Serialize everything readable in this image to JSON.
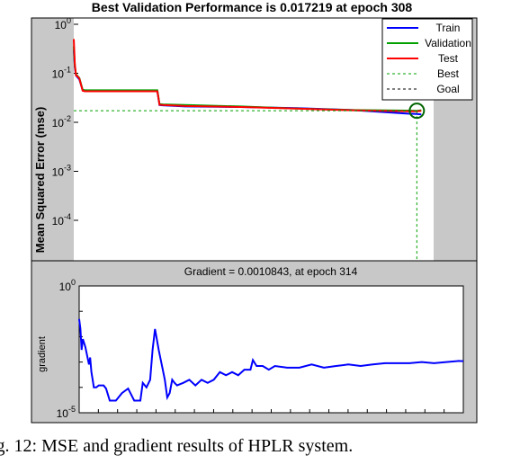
{
  "chart_data": [
    {
      "type": "line",
      "title": "Best Validation Performance is 0.017219 at epoch 308",
      "ylabel": "Mean Squared Error  (mse)",
      "xlabel": "",
      "yscale": "log",
      "ylim": [
        1e-05,
        1
      ],
      "xlim": [
        0,
        315
      ],
      "ytick_labels": [
        "10^0",
        "10^-1",
        "10^-2",
        "10^-3",
        "10^-4"
      ],
      "grid": false,
      "legend": "top-right",
      "background": "#c8c8c8",
      "series": [
        {
          "name": "Train",
          "color": "#0000ff",
          "style": "solid",
          "x": [
            0,
            1,
            2,
            3,
            5,
            8,
            10,
            20,
            40,
            60,
            75,
            77,
            80,
            100,
            150,
            200,
            250,
            300,
            308,
            312
          ],
          "y": [
            0.3,
            0.13,
            0.09,
            0.085,
            0.075,
            0.045,
            0.043,
            0.043,
            0.043,
            0.043,
            0.043,
            0.0225,
            0.0222,
            0.021,
            0.0205,
            0.0195,
            0.0178,
            0.015,
            0.0148,
            0.0145
          ]
        },
        {
          "name": "Validation",
          "color": "#00a000",
          "style": "solid",
          "x": [
            0,
            1,
            2,
            3,
            5,
            8,
            10,
            20,
            40,
            60,
            75,
            77,
            80,
            100,
            150,
            200,
            250,
            300,
            308,
            312
          ],
          "y": [
            0.35,
            0.14,
            0.095,
            0.09,
            0.08,
            0.046,
            0.045,
            0.045,
            0.045,
            0.045,
            0.045,
            0.0235,
            0.0232,
            0.0225,
            0.021,
            0.019,
            0.0178,
            0.0173,
            0.0172,
            0.0176
          ]
        },
        {
          "name": "Test",
          "color": "#ff0000",
          "style": "solid",
          "x": [
            0,
            1,
            2,
            3,
            5,
            8,
            10,
            20,
            40,
            60,
            75,
            77,
            80,
            100,
            150,
            200,
            250,
            300,
            308,
            312
          ],
          "y": [
            0.5,
            0.15,
            0.09,
            0.088,
            0.078,
            0.044,
            0.043,
            0.043,
            0.043,
            0.043,
            0.043,
            0.0228,
            0.0225,
            0.0215,
            0.0205,
            0.019,
            0.0176,
            0.0168,
            0.0168,
            0.017
          ]
        },
        {
          "name": "Best",
          "color": "#00a000",
          "style": "dotted",
          "x": 308,
          "y": 0.017219
        },
        {
          "name": "Goal",
          "color": "#000000",
          "style": "dotted"
        }
      ]
    },
    {
      "type": "line",
      "title": "Gradient = 0.0010843, at epoch 314",
      "ylabel": "gradient",
      "xlabel": "",
      "yscale": "log",
      "ylim": [
        1e-05,
        1
      ],
      "xlim": [
        0,
        314
      ],
      "ytick_labels": [
        "10^0",
        "10^-5"
      ],
      "grid": false,
      "series": [
        {
          "name": "",
          "color": "#0000ff",
          "x": [
            0,
            1,
            2,
            3,
            5,
            8,
            9,
            10,
            11,
            12,
            13,
            14,
            16,
            18,
            20,
            22,
            25,
            28,
            30,
            35,
            40,
            45,
            47,
            50,
            52,
            55,
            58,
            60,
            62,
            65,
            68,
            70,
            72,
            74,
            76,
            78,
            80,
            85,
            90,
            95,
            100,
            105,
            110,
            115,
            120,
            125,
            130,
            135,
            140,
            142,
            145,
            150,
            155,
            160,
            170,
            180,
            190,
            200,
            210,
            220,
            230,
            240,
            250,
            260,
            270,
            280,
            290,
            300,
            310,
            314
          ],
          "y": [
            0.05,
            0.02,
            0.003,
            0.008,
            0.004,
            0.0008,
            0.0015,
            0.0004,
            0.0002,
            0.0001,
            0.0001,
            0.0001,
            0.00012,
            0.00012,
            0.00012,
            9e-05,
            3e-05,
            3e-05,
            3e-05,
            6e-05,
            9e-05,
            3e-05,
            3e-05,
            3e-05,
            0.00015,
            0.0001,
            0.0002,
            0.003,
            0.02,
            0.003,
            0.0006,
            0.0002,
            4e-05,
            6e-05,
            0.0002,
            0.00015,
            0.00012,
            0.00015,
            0.0002,
            0.00012,
            0.0002,
            0.00015,
            0.0002,
            0.0004,
            0.0003,
            0.0004,
            0.0003,
            0.0005,
            0.0005,
            0.0012,
            0.0007,
            0.0007,
            0.0005,
            0.0007,
            0.0006,
            0.0006,
            0.0008,
            0.0006,
            0.0007,
            0.0008,
            0.0007,
            0.0008,
            0.0009,
            0.0009,
            0.0009,
            0.001,
            0.0009,
            0.001,
            0.0011,
            0.0010843
          ]
        }
      ]
    }
  ],
  "caption": "ig. 12: MSE and gradient results of HPLR system."
}
